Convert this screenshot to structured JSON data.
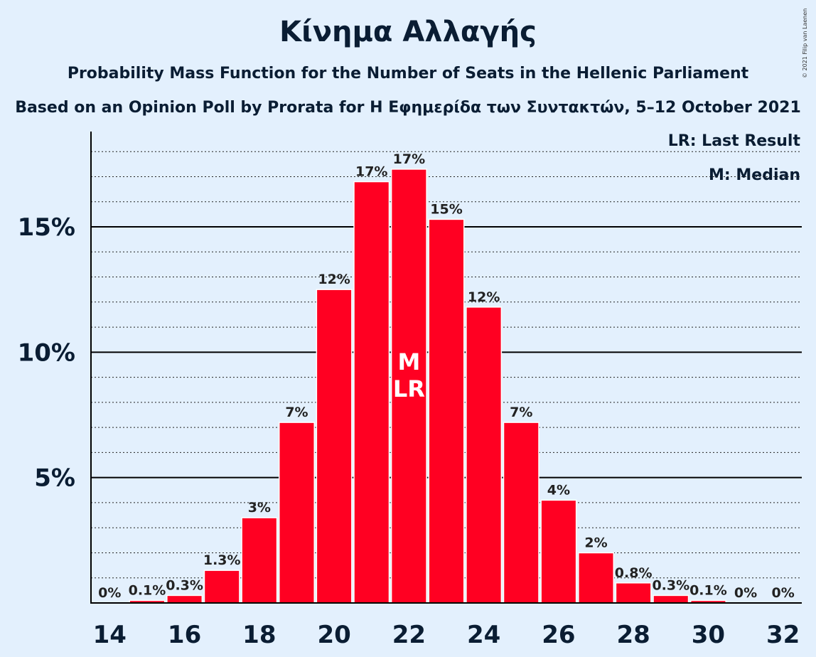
{
  "title": "Κίνημα Αλλαγής",
  "subtitle": "Probability Mass Function for the Number of Seats in the Hellenic Parliament",
  "subtitle2": "Based on an Opinion Poll by Prorata for Η Εφημερίδα των Συντακτών, 5–12 October 2021",
  "copyright": "© 2021 Filip van Laenen",
  "legend": {
    "last_result": "LR: Last Result",
    "median": "M: Median"
  },
  "colors": {
    "bar": "#ff0022",
    "background": "#e3f0fd",
    "text": "#0a1d33"
  },
  "chart_data": {
    "type": "bar",
    "categories": [
      14,
      15,
      16,
      17,
      18,
      19,
      20,
      21,
      22,
      23,
      24,
      25,
      26,
      27,
      28,
      29,
      30,
      31,
      32
    ],
    "values": [
      0,
      0.1,
      0.3,
      1.3,
      3.4,
      7.2,
      12.5,
      16.8,
      17.3,
      15.3,
      11.8,
      7.2,
      4.1,
      2.0,
      0.8,
      0.3,
      0.1,
      0,
      0
    ],
    "data_labels": [
      "0%",
      "0.1%",
      "0.3%",
      "1.3%",
      "3%",
      "7%",
      "12%",
      "17%",
      "17%",
      "15%",
      "12%",
      "7%",
      "4%",
      "2%",
      "0.8%",
      "0.3%",
      "0.1%",
      "0%",
      "0%"
    ],
    "x_tick_labels": [
      "14",
      "16",
      "18",
      "20",
      "22",
      "24",
      "26",
      "28",
      "30",
      "32"
    ],
    "y_ticks": [
      5,
      10,
      15
    ],
    "y_tick_labels": [
      "5%",
      "10%",
      "15%"
    ],
    "ylim": [
      0,
      18.8
    ],
    "minor_grid_step": 1,
    "median_seat": 22,
    "last_result_seat": 22,
    "bar_markers": [
      "M",
      "LR"
    ]
  }
}
